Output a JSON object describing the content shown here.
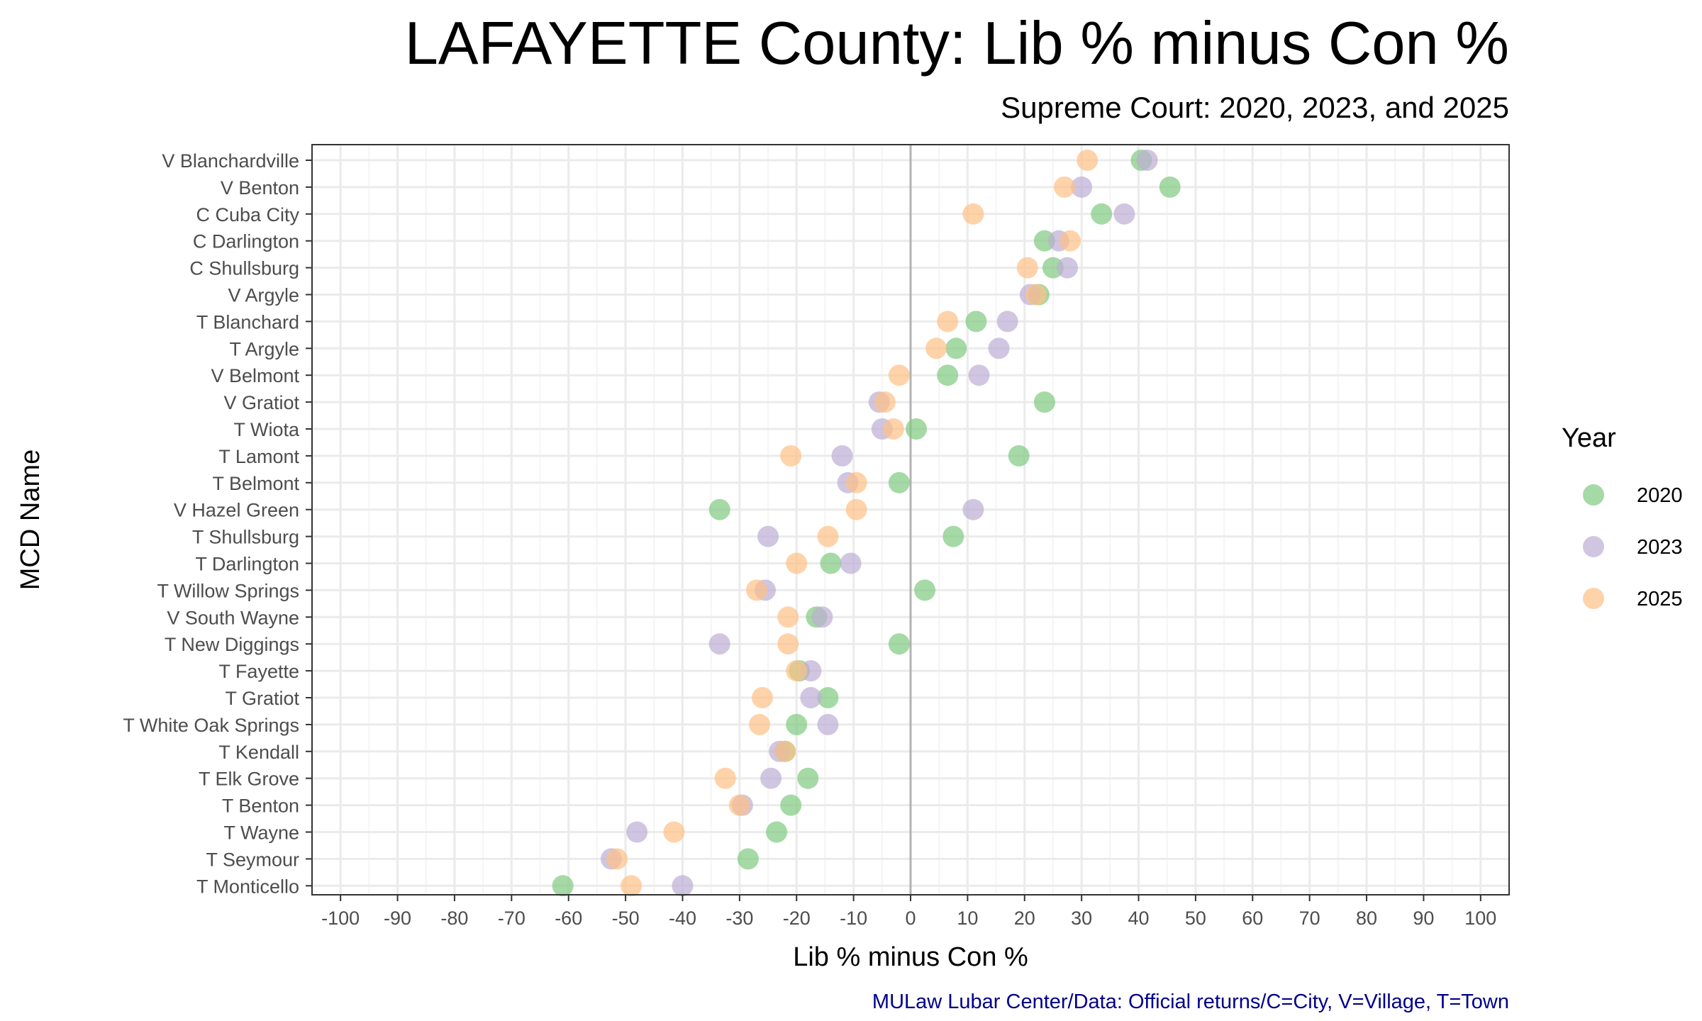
{
  "chart_data": {
    "type": "scatter",
    "title": "LAFAYETTE County: Lib % minus Con %",
    "subtitle": "Supreme Court: 2020, 2023, and 2025",
    "xlabel": "Lib % minus Con %",
    "ylabel": "MCD Name",
    "caption": "MULaw Lubar Center/Data: Official returns/C=City, V=Village, T=Town",
    "xlim": [
      -105,
      105
    ],
    "xticks": [
      -100,
      -90,
      -80,
      -70,
      -60,
      -50,
      -40,
      -30,
      -20,
      -10,
      0,
      10,
      20,
      30,
      40,
      50,
      60,
      70,
      80,
      90,
      100
    ],
    "grid": true,
    "reference_line_x": 0,
    "legend": {
      "title": "Year",
      "placement": "right"
    },
    "categories": [
      "V Blanchardville",
      "V Benton",
      "C Cuba City",
      "C Darlington",
      "C Shullsburg",
      "V Argyle",
      "T Blanchard",
      "T Argyle",
      "V Belmont",
      "V Gratiot",
      "T Wiota",
      "T Lamont",
      "T Belmont",
      "V Hazel Green",
      "T Shullsburg",
      "T Darlington",
      "T Willow Springs",
      "V South Wayne",
      "T New Diggings",
      "T Fayette",
      "T Gratiot",
      "T White Oak Springs",
      "T Kendall",
      "T Elk Grove",
      "T Benton",
      "T Wayne",
      "T Seymour",
      "T Monticello"
    ],
    "series": [
      {
        "name": "2020",
        "color": "#7fc97f",
        "values": [
          40.5,
          45.5,
          33.5,
          23.5,
          25,
          22.5,
          11.5,
          8,
          6.5,
          23.5,
          1,
          19,
          -2,
          -33.5,
          7.5,
          -14,
          2.5,
          -16.5,
          -2,
          -19.5,
          -14.5,
          -20,
          -22,
          -18,
          -21,
          -23.5,
          -28.5,
          -61
        ]
      },
      {
        "name": "2023",
        "color": "#beaed4",
        "values": [
          41.5,
          30,
          37.5,
          26,
          27.5,
          21,
          17,
          15.5,
          12,
          -5.5,
          -5,
          -12,
          -11,
          11,
          -25,
          -10.5,
          -25.5,
          -15.5,
          -33.5,
          -17.5,
          -17.5,
          -14.5,
          -23,
          -24.5,
          -29.5,
          -48,
          -52.5,
          -40
        ]
      },
      {
        "name": "2025",
        "color": "#fdc086",
        "values": [
          31,
          27,
          11,
          28,
          20.5,
          22,
          6.5,
          4.5,
          -2,
          -4.5,
          -3,
          -21,
          -9.5,
          -9.5,
          -14.5,
          -20,
          -27,
          -21.5,
          -21.5,
          -20,
          -26,
          -26.5,
          -22,
          -32.5,
          -30,
          -41.5,
          -51.5,
          -49
        ]
      }
    ]
  }
}
